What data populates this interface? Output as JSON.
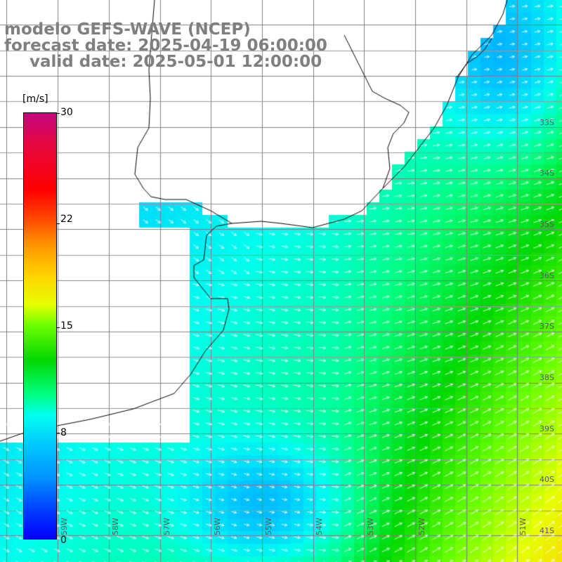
{
  "title": {
    "line1": "modelo GEFS-WAVE (NCEP)",
    "line2": "forecast date: 2025-04-19 06:00:00",
    "line3": "valid date: 2025-05-01 12:00:00"
  },
  "colorbar": {
    "unit": "[m/s]",
    "ticks": [
      "30",
      "22",
      "15",
      "8",
      "0"
    ],
    "tick_values": [
      30,
      22,
      15,
      8,
      0
    ],
    "range": [
      0,
      30
    ],
    "colors": [
      "#0000ff",
      "#0040ff",
      "#0090ff",
      "#00c8ff",
      "#00ffee",
      "#00ff80",
      "#00d800",
      "#6aff00",
      "#e6ff00",
      "#ffd200",
      "#ff8c00",
      "#ff4a00",
      "#ff0000",
      "#e8083c",
      "#c4067c"
    ]
  },
  "map": {
    "variable": "wind speed and direction",
    "land_color": "#ffffff",
    "grid_color": "#808080",
    "coast_color": "#000000",
    "lat_labels": [
      "33S",
      "34S",
      "35S",
      "36S",
      "37S",
      "38S",
      "39S",
      "40S",
      "41S"
    ],
    "lon_labels": [
      "59W",
      "58W",
      "57W",
      "56W",
      "55W",
      "54W",
      "53W",
      "52W",
      "51W"
    ]
  }
}
